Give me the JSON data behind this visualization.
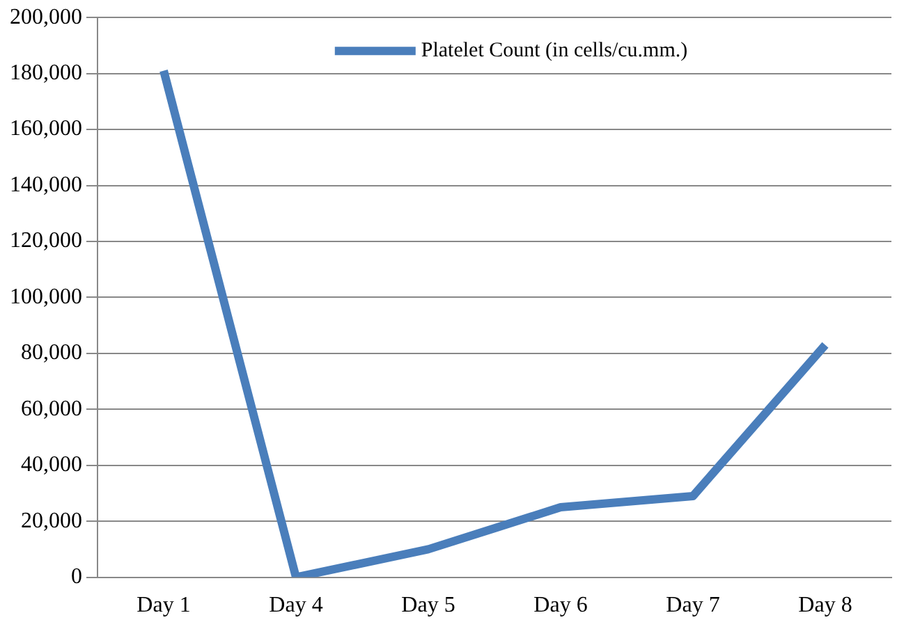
{
  "chart_data": {
    "type": "line",
    "categories": [
      "Day 1",
      "Day 4",
      "Day 5",
      "Day 6",
      "Day 7",
      "Day 8"
    ],
    "series": [
      {
        "name": "Platelet Count (in cells/cu.mm.)",
        "color": "#4a7ebb",
        "values": [
          181000,
          0,
          10000,
          25000,
          29000,
          83000
        ]
      }
    ],
    "ylim": [
      0,
      200000
    ],
    "yticks": [
      0,
      {
        "value": 20000,
        "label": "20,000"
      },
      {
        "value": 40000,
        "label": "40,000"
      },
      {
        "value": 60000,
        "label": "60,000"
      },
      {
        "value": 80000,
        "label": "80,000"
      },
      {
        "value": 100000,
        "label": "100,000"
      },
      {
        "value": 120000,
        "label": "120,000"
      },
      {
        "value": 140000,
        "label": "140,000"
      },
      {
        "value": 160000,
        "label": "160,000"
      },
      {
        "value": 180000,
        "label": "180,000"
      },
      {
        "value": 200000,
        "label": "200,000"
      }
    ],
    "grid": "y",
    "legend": "top",
    "marker": "none"
  }
}
